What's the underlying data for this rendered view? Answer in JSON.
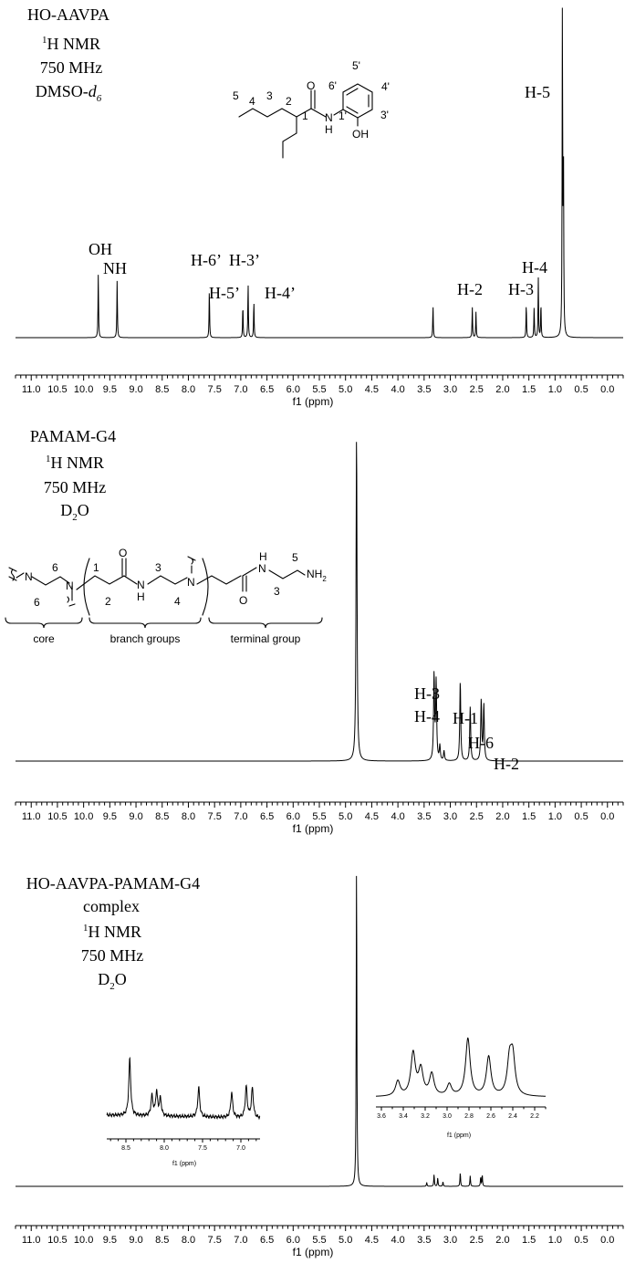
{
  "chart_data": [
    {
      "type": "line",
      "xlabel": "f1 (ppm)",
      "x_reversed": true,
      "xlim": [
        11.3,
        -0.3
      ],
      "ticks": [
        "11.0",
        "10.5",
        "10.0",
        "9.5",
        "9.0",
        "8.5",
        "8.0",
        "7.5",
        "7.0",
        "6.5",
        "6.0",
        "5.5",
        "5.0",
        "4.5",
        "4.0",
        "3.5",
        "3.0",
        "2.5",
        "2.0",
        "1.5",
        "1.0",
        "0.5",
        "0.0"
      ],
      "info_lines": [
        "HO-AAVPA",
        "1H NMR",
        "750 MHz",
        "DMSO-d6"
      ],
      "series": [
        {
          "peaks": [
            {
              "ppm": 9.72,
              "height": 0.195
            },
            {
              "ppm": 9.36,
              "height": 0.176
            },
            {
              "ppm": 7.6,
              "height": 0.146
            },
            {
              "ppm": 6.96,
              "height": 0.1
            },
            {
              "ppm": 6.86,
              "height": 0.167
            },
            {
              "ppm": 6.75,
              "height": 0.111
            },
            {
              "ppm": 3.33,
              "height": 0.097
            },
            {
              "ppm": 2.58,
              "height": 0.092
            },
            {
              "ppm": 2.51,
              "height": 0.078
            },
            {
              "ppm": 1.55,
              "height": 0.103
            },
            {
              "ppm": 1.4,
              "height": 0.092
            },
            {
              "ppm": 1.32,
              "height": 0.181
            },
            {
              "ppm": 1.27,
              "height": 0.104
            },
            {
              "ppm": 0.86,
              "height": 1.0
            },
            {
              "ppm": 0.84,
              "height": 0.54
            }
          ]
        }
      ],
      "annotations": [
        {
          "text": "OH",
          "ppm": 9.72
        },
        {
          "text": "NH",
          "ppm": 9.36
        },
        {
          "text": "H-6’",
          "ppm": 7.6
        },
        {
          "text": "H-3’",
          "ppm": 6.86
        },
        {
          "text": "H-5’",
          "ppm": 7.05
        },
        {
          "text": "H-4’",
          "ppm": 6.6
        },
        {
          "text": "H-2",
          "ppm": 2.56
        },
        {
          "text": "H-3",
          "ppm": 1.55
        },
        {
          "text": "H-4",
          "ppm": 1.32
        },
        {
          "text": "H-5",
          "ppm": 0.86
        }
      ],
      "structure_labels": [
        "5",
        "4",
        "3",
        "2",
        "1",
        "6'",
        "5'",
        "4'",
        "3'",
        "1'",
        "O",
        "N",
        "H",
        "OH"
      ]
    },
    {
      "type": "line",
      "xlabel": "f1 (ppm)",
      "x_reversed": true,
      "xlim": [
        11.3,
        -0.3
      ],
      "ticks": [
        "11.0",
        "10.5",
        "10.0",
        "9.5",
        "9.0",
        "8.5",
        "8.0",
        "7.5",
        "7.0",
        "6.5",
        "6.0",
        "5.5",
        "5.0",
        "4.5",
        "4.0",
        "3.5",
        "3.0",
        "2.5",
        "2.0",
        "1.5",
        "1.0",
        "0.5",
        "0.0"
      ],
      "info_lines": [
        "PAMAM-G4",
        "1H NMR",
        "750 MHz",
        "D2O"
      ],
      "series": [
        {
          "peaks": [
            {
              "ppm": 4.79,
              "height": 1.0
            },
            {
              "ppm": 3.31,
              "height": 0.262
            },
            {
              "ppm": 3.27,
              "height": 0.239
            },
            {
              "ppm": 3.2,
              "height": 0.045
            },
            {
              "ppm": 3.12,
              "height": 0.03
            },
            {
              "ppm": 2.81,
              "height": 0.245
            },
            {
              "ppm": 2.62,
              "height": 0.165
            },
            {
              "ppm": 2.41,
              "height": 0.185
            },
            {
              "ppm": 2.36,
              "height": 0.17
            }
          ]
        }
      ],
      "annotations": [
        {
          "text": "H-3",
          "ppm": 3.28
        },
        {
          "text": "H-4",
          "ppm": 3.28
        },
        {
          "text": "H-1",
          "ppm": 2.81
        },
        {
          "text": "H-6",
          "ppm": 2.55
        },
        {
          "text": "H-2",
          "ppm": 2.3
        }
      ],
      "structure_labels": [
        "N",
        "6",
        "6",
        "N",
        "1",
        "2",
        "O",
        "3",
        "N",
        "H",
        "4",
        "N",
        "O",
        "H",
        "N",
        "5",
        "3",
        "NH2"
      ],
      "bracket_labels": [
        "core",
        "branch groups",
        "terminal group"
      ]
    },
    {
      "type": "line",
      "xlabel": "f1 (ppm)",
      "x_reversed": true,
      "xlim": [
        11.3,
        -0.3
      ],
      "ticks": [
        "11.0",
        "10.5",
        "10.0",
        "9.5",
        "9.0",
        "8.5",
        "8.0",
        "7.5",
        "7.0",
        "6.5",
        "6.0",
        "5.5",
        "5.0",
        "4.5",
        "4.0",
        "3.5",
        "3.0",
        "2.5",
        "2.0",
        "1.5",
        "1.0",
        "0.5",
        "0.0"
      ],
      "info_lines": [
        "HO-AAVPA-PAMAM-G4",
        "complex",
        "1H NMR",
        "750 MHz",
        "D2O"
      ],
      "series": [
        {
          "peaks": [
            {
              "ppm": 4.79,
              "height": 1.0
            },
            {
              "ppm": 3.45,
              "height": 0.012
            },
            {
              "ppm": 3.31,
              "height": 0.036
            },
            {
              "ppm": 3.24,
              "height": 0.026
            },
            {
              "ppm": 3.14,
              "height": 0.014
            },
            {
              "ppm": 2.81,
              "height": 0.042
            },
            {
              "ppm": 2.62,
              "height": 0.032
            },
            {
              "ppm": 2.42,
              "height": 0.028
            },
            {
              "ppm": 2.39,
              "height": 0.034
            }
          ]
        }
      ],
      "insets": [
        {
          "xlabel": "f1 (ppm)",
          "xlim": [
            8.75,
            6.75
          ],
          "ticks": [
            "8.5",
            "8.0",
            "7.5",
            "7.0"
          ],
          "peaks": [
            {
              "ppm": 8.45,
              "height": 1.0
            },
            {
              "ppm": 8.16,
              "height": 0.35
            },
            {
              "ppm": 8.1,
              "height": 0.42
            },
            {
              "ppm": 8.05,
              "height": 0.3
            },
            {
              "ppm": 7.55,
              "height": 0.52
            },
            {
              "ppm": 7.12,
              "height": 0.44
            },
            {
              "ppm": 6.93,
              "height": 0.55
            },
            {
              "ppm": 6.85,
              "height": 0.52
            }
          ]
        },
        {
          "xlabel": "f1 (ppm)",
          "xlim": [
            3.65,
            2.1
          ],
          "ticks": [
            "3.6",
            "3.4",
            "3.2",
            "3.0",
            "2.8",
            "2.6",
            "2.4",
            "2.2"
          ],
          "peaks": [
            {
              "ppm": 3.45,
              "height": 0.26
            },
            {
              "ppm": 3.31,
              "height": 0.74
            },
            {
              "ppm": 3.24,
              "height": 0.45
            },
            {
              "ppm": 3.14,
              "height": 0.38
            },
            {
              "ppm": 2.98,
              "height": 0.2
            },
            {
              "ppm": 2.81,
              "height": 1.0
            },
            {
              "ppm": 2.62,
              "height": 0.68
            },
            {
              "ppm": 2.43,
              "height": 0.58
            },
            {
              "ppm": 2.4,
              "height": 0.64
            }
          ]
        }
      ]
    }
  ]
}
